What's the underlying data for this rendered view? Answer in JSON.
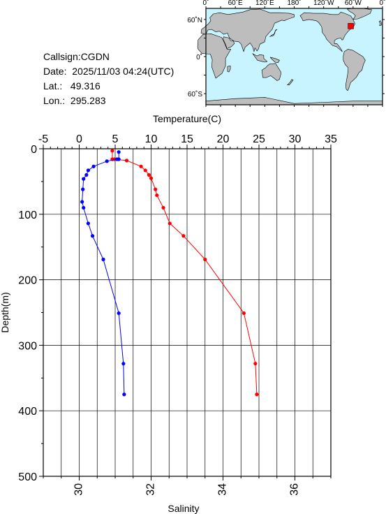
{
  "station": {
    "callsign": "Callsign:CGDN",
    "date": "Date:  2025/11/03 04:24(UTC)",
    "lat": "Lat.:   49.316",
    "lon": "Lon.:  295.283"
  },
  "map": {
    "top_labels": [
      "0˚",
      "60˚E",
      "120˚E",
      "180˚",
      "120˚W",
      "60˚W",
      "0˚"
    ],
    "left_labels": [
      "60˚N",
      "0˚",
      "60˚S"
    ],
    "ocean_color": "#c8f4ff",
    "land_color": "#bdbdbd",
    "marker_color": "#ff0000",
    "marker_lon": 295.283,
    "marker_lat": 49.316
  },
  "chart_data": {
    "type": "line",
    "xlabel_top": "Temperature(C)",
    "xlabel_bottom": "Salinity",
    "ylabel": "Depth(m)",
    "temperature_axis": {
      "lim": [
        -5,
        35
      ],
      "ticks": [
        "-5",
        "0",
        "5",
        "10",
        "15",
        "20",
        "25",
        "30",
        "35"
      ],
      "tick_values": [
        -5,
        0,
        5,
        10,
        15,
        20,
        25,
        30,
        35
      ]
    },
    "salinity_axis": {
      "lim": [
        29,
        37
      ],
      "ticks": [
        "30",
        "32",
        "34",
        "36"
      ],
      "tick_values": [
        30,
        32,
        34,
        36
      ]
    },
    "depth_axis": {
      "lim": [
        0,
        500
      ],
      "inverted": true,
      "ticks": [
        "0",
        "100",
        "200",
        "300",
        "400",
        "500"
      ],
      "tick_values": [
        0,
        100,
        200,
        300,
        400,
        500
      ]
    },
    "grid": true,
    "series": [
      {
        "axis": "temperature",
        "color": "#ff0000",
        "depth": [
          3,
          16,
          16,
          18,
          27,
          33,
          40,
          45,
          62,
          71,
          90,
          114,
          133,
          169,
          251,
          328,
          375
        ],
        "values": [
          4.6,
          4.6,
          4.9,
          6.6,
          8.6,
          9.2,
          9.7,
          10.0,
          10.6,
          10.8,
          11.7,
          12.6,
          14.5,
          17.5,
          22.9,
          24.5,
          24.7
        ]
      },
      {
        "axis": "salinity",
        "color": "#0000ff",
        "depth": [
          5,
          16,
          16,
          19,
          27,
          33,
          40,
          46,
          62,
          81,
          90,
          114,
          133,
          169,
          251,
          328,
          375
        ],
        "values": [
          31.1,
          31.1,
          31.05,
          30.77,
          30.4,
          30.25,
          30.2,
          30.12,
          30.1,
          30.08,
          30.12,
          30.25,
          30.37,
          30.67,
          31.1,
          31.23,
          31.25
        ]
      }
    ]
  }
}
